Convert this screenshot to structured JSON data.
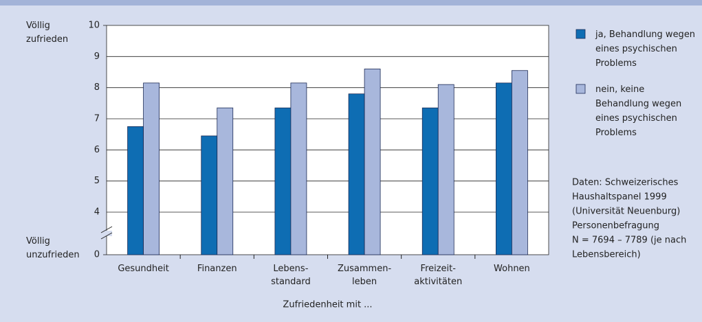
{
  "chart_data": {
    "type": "bar",
    "categories": [
      "Gesundheit",
      "Finanzen",
      "Lebens-\nstandard",
      "Zusammen-\nleben",
      "Freizeit-\naktivitäten",
      "Wohnen"
    ],
    "series": [
      {
        "name": "ja, Behandlung wegen\neines psychischen\nProblems",
        "color": "#0e6db3",
        "values": [
          6.75,
          6.45,
          7.35,
          7.8,
          7.35,
          8.15
        ]
      },
      {
        "name": "nein, keine\nBehandlung wegen\neines psychischen\nProblems",
        "color": "#a8b7dc",
        "values": [
          8.15,
          7.35,
          8.15,
          8.6,
          8.1,
          8.55
        ]
      }
    ],
    "ylim": [
      0,
      10
    ],
    "yticks": [
      0,
      4,
      5,
      6,
      7,
      8,
      9,
      10
    ],
    "y_axis_break": true,
    "grid": true,
    "y_top_label": "Völlig\nzufrieden",
    "y_bottom_label": "Völlig\nunzufrieden",
    "x_label": "Zufriedenheit mit ...",
    "legend": "right",
    "note": [
      "Daten: Schweizerisches",
      "Haushaltspanel 1999",
      "(Universität Neuenburg)",
      "Personenbefragung",
      "N = 7694 – 7789 (je nach",
      "Lebensbereich)"
    ]
  }
}
